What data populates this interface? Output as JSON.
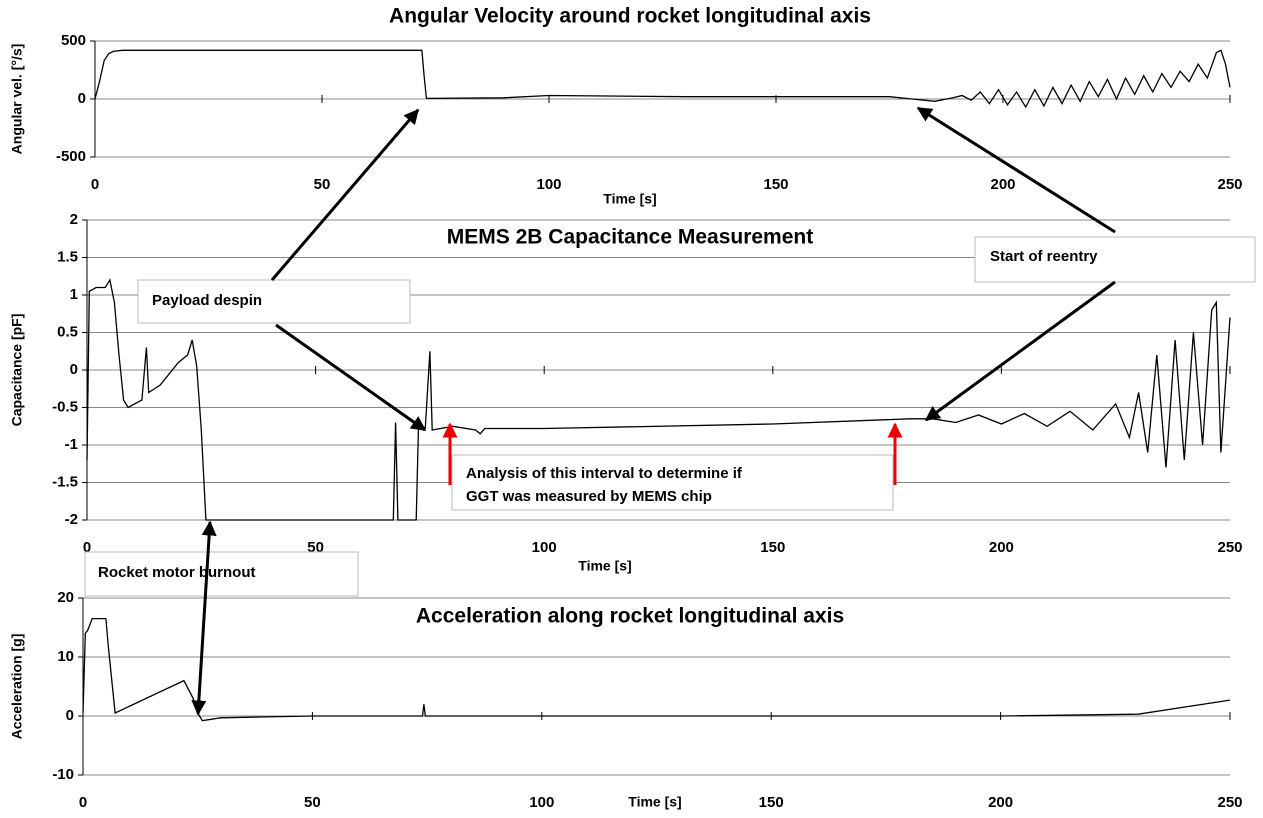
{
  "chart_data": [
    {
      "type": "line",
      "title": "Angular Velocity around rocket longitudinal axis",
      "x_label": "Time  [s]",
      "y_label": "Angular vel. [°/s]",
      "xlim": [
        0,
        250
      ],
      "xticks": [
        0,
        50,
        100,
        150,
        200,
        250
      ],
      "ylim": [
        -500,
        500
      ],
      "yticks": [
        -500,
        0,
        500
      ],
      "grid": true,
      "color": "#000000",
      "x": [
        0,
        1,
        2,
        3,
        4,
        6,
        72,
        72.5,
        73,
        90,
        100,
        130,
        175,
        180,
        185,
        189,
        191,
        193,
        195,
        197,
        199,
        201,
        203,
        205,
        207,
        209,
        211,
        213,
        215,
        217,
        219,
        221,
        223,
        225,
        227,
        229,
        231,
        233,
        235,
        237,
        239,
        241,
        243,
        245,
        247,
        248,
        249,
        250
      ],
      "values": [
        0,
        150,
        330,
        390,
        410,
        420,
        420,
        200,
        5,
        10,
        30,
        20,
        20,
        0,
        -20,
        10,
        30,
        -10,
        60,
        -40,
        80,
        -50,
        60,
        -70,
        80,
        -60,
        100,
        -40,
        120,
        -20,
        150,
        20,
        170,
        0,
        180,
        40,
        200,
        60,
        220,
        100,
        240,
        150,
        300,
        180,
        400,
        420,
        300,
        100
      ]
    },
    {
      "type": "line",
      "title": "MEMS 2B Capacitance Measurement",
      "x_label": "Time   [s]",
      "y_label": "Capacitance [pF]",
      "xlim": [
        0,
        250
      ],
      "xticks": [
        0,
        50,
        100,
        150,
        200,
        250
      ],
      "ylim": [
        -2,
        2
      ],
      "yticks": [
        -2,
        -1.5,
        -1,
        -0.5,
        0,
        0.5,
        1,
        1.5,
        2
      ],
      "grid": true,
      "color": "#000000",
      "x": [
        0,
        0.5,
        2,
        4,
        5,
        6,
        7,
        8,
        9,
        12,
        13,
        13.5,
        16,
        20,
        22,
        23,
        24,
        25,
        26,
        30,
        67,
        67.5,
        68,
        72,
        72.5,
        74,
        75,
        75.5,
        80,
        85,
        86,
        87,
        100,
        150,
        180,
        185,
        190,
        195,
        200,
        205,
        210,
        215,
        220,
        225,
        228,
        230,
        232,
        234,
        236,
        238,
        240,
        242,
        244,
        246,
        247,
        248,
        250
      ],
      "values": [
        -1.2,
        1.05,
        1.1,
        1.1,
        1.2,
        0.9,
        0.2,
        -0.4,
        -0.5,
        -0.4,
        0.3,
        -0.3,
        -0.2,
        0.1,
        0.2,
        0.4,
        0.05,
        -0.8,
        -2,
        -2,
        -2,
        -0.7,
        -2,
        -2,
        -0.75,
        -0.77,
        0.25,
        -0.8,
        -0.75,
        -0.8,
        -0.85,
        -0.78,
        -0.78,
        -0.72,
        -0.65,
        -0.65,
        -0.7,
        -0.6,
        -0.72,
        -0.58,
        -0.75,
        -0.55,
        -0.8,
        -0.45,
        -0.9,
        -0.3,
        -1.1,
        0.2,
        -1.3,
        0.4,
        -1.2,
        0.5,
        -1,
        0.8,
        0.9,
        -1.1,
        0.7
      ]
    },
    {
      "type": "line",
      "title": "Acceleration along rocket longitudinal axis",
      "x_label": "Time  [s]",
      "y_label": "Acceleration [g]",
      "xlim": [
        0,
        250
      ],
      "xticks": [
        0,
        50,
        100,
        150,
        200,
        250
      ],
      "ylim": [
        -10,
        20
      ],
      "yticks": [
        -10,
        0,
        10,
        20
      ],
      "grid": true,
      "color": "#000000",
      "x": [
        0,
        0.5,
        1,
        2,
        5,
        5.5,
        7,
        22,
        24,
        25,
        26,
        30,
        50,
        74,
        74.3,
        74.6,
        200,
        230,
        240,
        250
      ],
      "values": [
        0.5,
        14,
        14.5,
        16.5,
        16.5,
        12,
        0.5,
        6,
        3,
        0.5,
        -0.8,
        -0.3,
        0,
        0,
        2,
        0,
        0,
        0.3,
        1.5,
        2.7
      ]
    }
  ],
  "annotations": {
    "payload": "Payload despin",
    "reentry": "Start of reentry",
    "burnout": "Rocket motor burnout",
    "analysis": [
      "Analysis of this interval to determine if",
      "GGT was measured by MEMS chip"
    ]
  }
}
